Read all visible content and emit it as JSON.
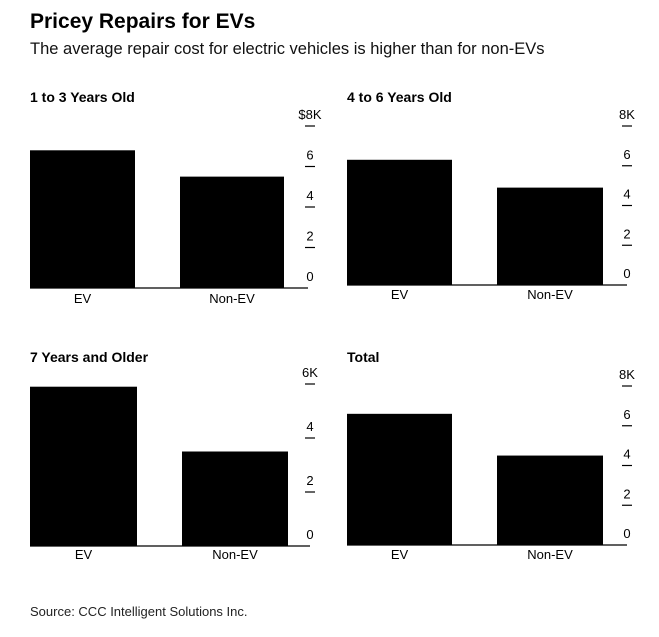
{
  "header": {
    "title": "Pricey Repairs for EVs",
    "subtitle": "The average repair cost for electric vehicles is higher than for non-EVs"
  },
  "footer": {
    "source": "Source: CCC Intelligent Solutions Inc."
  },
  "colors": {
    "bar": "#000000",
    "text": "#000000",
    "tick": "#000000"
  },
  "chart_data": [
    {
      "type": "bar",
      "title": "1 to 3 Years Old",
      "categories": [
        "EV",
        "Non-EV"
      ],
      "values": [
        6.8,
        5.5
      ],
      "ylim": [
        0,
        8
      ],
      "yticks": [
        0,
        2,
        4,
        6,
        8
      ],
      "ytick_labels": [
        "0",
        "2",
        "4",
        "6",
        "$8K"
      ],
      "grid": false
    },
    {
      "type": "bar",
      "title": "4 to 6 Years Old",
      "categories": [
        "EV",
        "Non-EV"
      ],
      "values": [
        6.3,
        4.9
      ],
      "ylim": [
        0,
        8
      ],
      "yticks": [
        0,
        2,
        4,
        6,
        8
      ],
      "ytick_labels": [
        "0",
        "2",
        "4",
        "6",
        "8K"
      ],
      "grid": false
    },
    {
      "type": "bar",
      "title": "7 Years and Older",
      "categories": [
        "EV",
        "Non-EV"
      ],
      "values": [
        5.9,
        3.5
      ],
      "ylim": [
        0,
        6
      ],
      "yticks": [
        0,
        2,
        4,
        6
      ],
      "ytick_labels": [
        "0",
        "2",
        "4",
        "6K"
      ],
      "grid": false
    },
    {
      "type": "bar",
      "title": "Total",
      "categories": [
        "EV",
        "Non-EV"
      ],
      "values": [
        6.6,
        4.5
      ],
      "ylim": [
        0,
        8
      ],
      "yticks": [
        0,
        2,
        4,
        6,
        8
      ],
      "ytick_labels": [
        "0",
        "2",
        "4",
        "6",
        "8K"
      ],
      "grid": false
    }
  ]
}
